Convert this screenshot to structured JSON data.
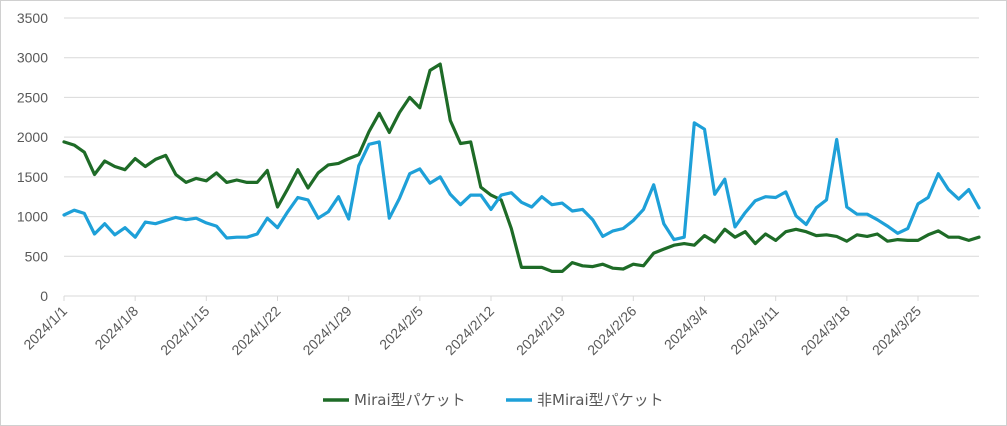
{
  "chart_data": {
    "type": "line",
    "title": "",
    "xlabel": "",
    "ylabel": "",
    "ylim": [
      0,
      3500
    ],
    "yticks": [
      0,
      500,
      1000,
      1500,
      2000,
      2500,
      3000,
      3500
    ],
    "ytick_labels": [
      "0",
      "500",
      "1000",
      "1500",
      "2000",
      "2500",
      "3000",
      "3500"
    ],
    "x_tick_labels": [
      "2024/1/1",
      "2024/1/8",
      "2024/1/15",
      "2024/1/22",
      "2024/1/29",
      "2024/2/5",
      "2024/2/12",
      "2024/2/19",
      "2024/2/26",
      "2024/3/4",
      "2024/3/11",
      "2024/3/18",
      "2024/3/25"
    ],
    "x_tick_every": 7,
    "num_points": 91,
    "grid": true,
    "legend_position": "bottom",
    "series": [
      {
        "name": "Mirai型パケット",
        "color": "#1e6b27",
        "values": [
          1940,
          1900,
          1810,
          1530,
          1700,
          1630,
          1590,
          1730,
          1630,
          1720,
          1770,
          1530,
          1430,
          1480,
          1450,
          1550,
          1430,
          1460,
          1430,
          1430,
          1580,
          1120,
          1350,
          1590,
          1360,
          1550,
          1650,
          1670,
          1730,
          1780,
          2070,
          2300,
          2060,
          2310,
          2500,
          2370,
          2840,
          2920,
          2210,
          1920,
          1940,
          1370,
          1270,
          1210,
          850,
          360,
          360,
          360,
          310,
          310,
          420,
          380,
          370,
          400,
          350,
          340,
          400,
          380,
          540,
          590,
          640,
          660,
          640,
          760,
          680,
          840,
          740,
          810,
          660,
          780,
          700,
          810,
          840,
          810,
          760,
          770,
          750,
          690,
          770,
          750,
          780,
          690,
          710,
          700,
          700,
          770,
          820,
          740,
          740,
          700,
          740
        ]
      },
      {
        "name": "非Mirai型パケット",
        "color": "#1ea0d8",
        "values": [
          1020,
          1080,
          1040,
          780,
          910,
          770,
          860,
          740,
          930,
          910,
          950,
          990,
          960,
          980,
          920,
          880,
          730,
          740,
          740,
          780,
          980,
          860,
          1060,
          1240,
          1210,
          980,
          1060,
          1250,
          970,
          1640,
          1910,
          1940,
          980,
          1230,
          1540,
          1600,
          1420,
          1500,
          1280,
          1150,
          1270,
          1270,
          1090,
          1270,
          1300,
          1180,
          1120,
          1250,
          1150,
          1170,
          1070,
          1090,
          960,
          750,
          820,
          850,
          950,
          1090,
          1400,
          910,
          710,
          740,
          2180,
          2100,
          1280,
          1470,
          870,
          1050,
          1200,
          1250,
          1240,
          1310,
          1010,
          900,
          1110,
          1210,
          1970,
          1120,
          1030,
          1030,
          960,
          880,
          790,
          850,
          1160,
          1240,
          1540,
          1340,
          1220,
          1340,
          1110
        ]
      }
    ]
  }
}
